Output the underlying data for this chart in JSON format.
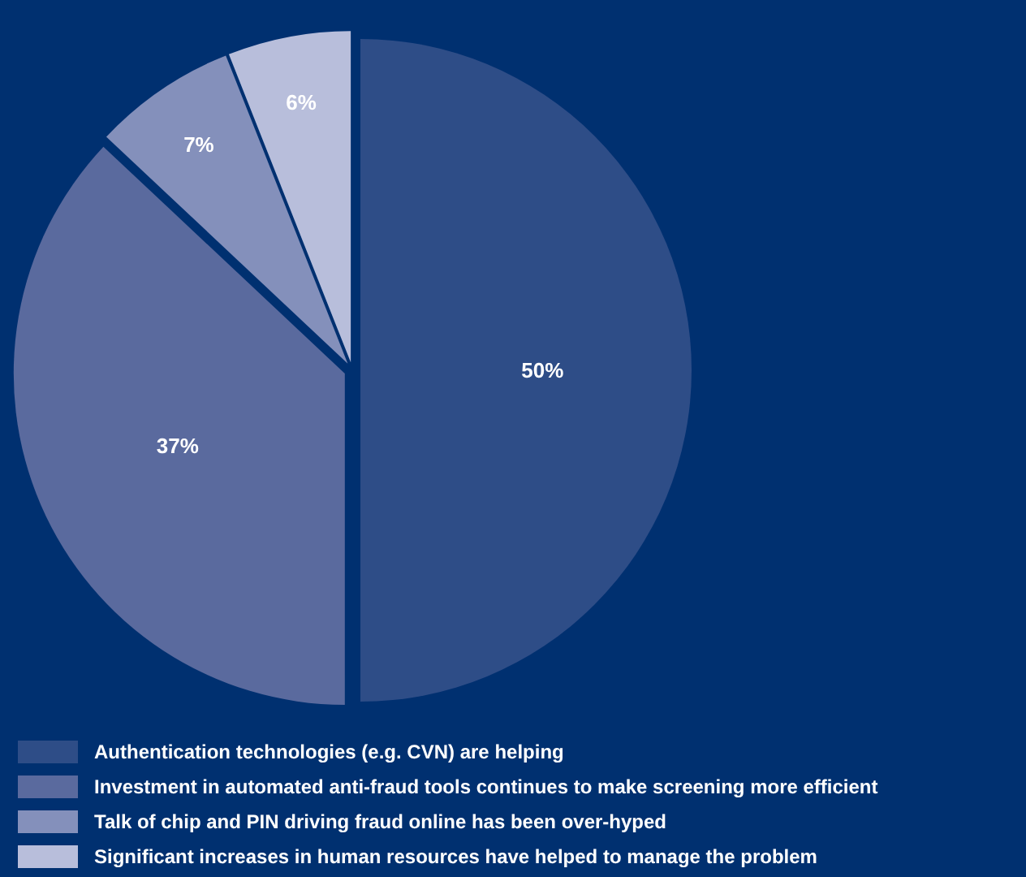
{
  "chart_data": {
    "type": "pie",
    "categories": [
      "Authentication technologies (e.g. CVN) are helping",
      "Investment in automated anti-fraud tools continues to make screening more efficient",
      "Talk of chip and PIN driving fraud online has been over-hyped",
      "Significant increases in human resources have helped to manage the problem"
    ],
    "values": [
      50,
      37,
      7,
      6
    ],
    "colors": [
      "#2e4d87",
      "#5a6a9e",
      "#8490bb",
      "#b8bedb"
    ],
    "value_labels": [
      "50%",
      "37%",
      "7%",
      "6%"
    ],
    "legend": "bottom"
  }
}
